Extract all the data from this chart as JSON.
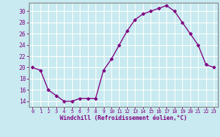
{
  "x": [
    0,
    1,
    2,
    3,
    4,
    5,
    6,
    7,
    8,
    9,
    10,
    11,
    12,
    13,
    14,
    15,
    16,
    17,
    18,
    19,
    20,
    21,
    22,
    23
  ],
  "y": [
    20,
    19.5,
    16,
    15,
    14,
    14,
    14.5,
    14.5,
    14.5,
    19.5,
    21.5,
    24,
    26.5,
    28.5,
    29.5,
    30,
    30.5,
    31,
    30,
    28,
    26,
    24,
    20.5,
    20
  ],
  "line_color": "#800080",
  "marker": "D",
  "markersize": 2.5,
  "linewidth": 1.0,
  "xlabel": "Windchill (Refroidissement éolien,°C)",
  "xlim": [
    -0.5,
    23.5
  ],
  "ylim": [
    13,
    31.5
  ],
  "yticks": [
    14,
    16,
    18,
    20,
    22,
    24,
    26,
    28,
    30
  ],
  "xticks": [
    0,
    1,
    2,
    3,
    4,
    5,
    6,
    7,
    8,
    9,
    10,
    11,
    12,
    13,
    14,
    15,
    16,
    17,
    18,
    19,
    20,
    21,
    22,
    23
  ],
  "background_color": "#c8eaf0",
  "grid_color": "#ffffff",
  "tick_color": "#800080",
  "label_color": "#800080",
  "spine_color": "#808080"
}
